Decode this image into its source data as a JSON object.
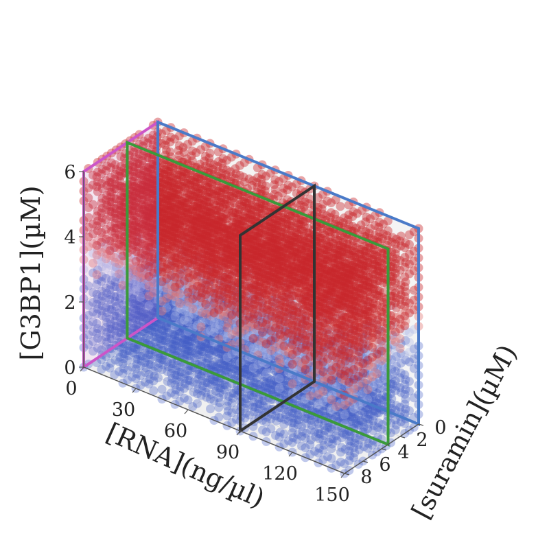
{
  "chart_data": {
    "type": "scatter",
    "projection": "3d",
    "title": "",
    "axes": {
      "x": {
        "label": "[RNA](ng/µl)",
        "range": [
          0,
          150
        ],
        "ticks": [
          0,
          30,
          60,
          90,
          120,
          150
        ]
      },
      "y": {
        "label": "[suramin](µM)",
        "range": [
          0,
          8
        ],
        "ticks": [
          0,
          2,
          4,
          6,
          8
        ]
      },
      "z": {
        "label": "[G3BP1](µM)",
        "range": [
          0,
          6
        ],
        "ticks": [
          0,
          2,
          4,
          6
        ]
      }
    },
    "grid": true,
    "legend": "none",
    "colormap": {
      "low": "#3f5cc4",
      "mid": "#d9d9e8",
      "high": "#c9262a",
      "meaning": "diverging blue-white-red"
    },
    "point_grid": {
      "x_step": 7.5,
      "y_step": 0.5,
      "z_step": 0.3
    },
    "boundary_surface": [
      {
        "x": 0,
        "y": 0,
        "z": 2.5
      },
      {
        "x": 0,
        "y": 8,
        "z": 3.4
      },
      {
        "x": 150,
        "y": 0,
        "z": 3.0
      },
      {
        "x": 150,
        "y": 8,
        "z": 1.9
      }
    ],
    "slice_planes": [
      {
        "name": "",
        "orientation": "x-fixed",
        "x": 0,
        "color": "#cc55c8"
      },
      {
        "name": "",
        "orientation": "y-fixed",
        "y": 0,
        "color": "#4a7ac8"
      },
      {
        "name": "",
        "orientation": "y-fixed",
        "y": 3.3,
        "color": "#3a9a3a"
      },
      {
        "name": "",
        "orientation": "x-fixed",
        "x": 90,
        "color": "#333333"
      }
    ]
  }
}
